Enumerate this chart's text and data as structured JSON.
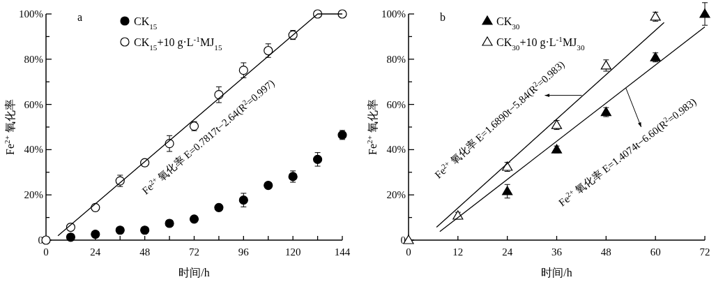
{
  "chart_data": [
    {
      "type": "scatter",
      "title": "a",
      "xlabel": "时间/h",
      "ylabel": "Fe$^{2+}$ 氧化率",
      "xlim": [
        0,
        144
      ],
      "ylim": [
        0,
        100
      ],
      "xticks": [
        0,
        {
          "value": 12,
          "label": null
        },
        24,
        {
          "value": 36,
          "label": null
        },
        48,
        {
          "value": 60,
          "label": null
        },
        72,
        {
          "value": 84,
          "label": null
        },
        96,
        {
          "value": 108,
          "label": null
        },
        120,
        {
          "value": 132,
          "label": null
        },
        144
      ],
      "yticks": [
        {
          "value": 0,
          "label": "0"
        },
        {
          "value": 10,
          "label": null
        },
        {
          "value": 20,
          "label": "20%"
        },
        {
          "value": 30,
          "label": null
        },
        {
          "value": 40,
          "label": "40%"
        },
        {
          "value": 50,
          "label": null
        },
        {
          "value": 60,
          "label": "60%"
        },
        {
          "value": 70,
          "label": null
        },
        {
          "value": 80,
          "label": "80%"
        },
        {
          "value": 90,
          "label": null
        },
        {
          "value": 100,
          "label": "100%"
        }
      ],
      "legend": "top left",
      "grid": false,
      "series": [
        {
          "name": "CK$_{15}$",
          "marker": "circle",
          "color": "#000000",
          "x": [
            12,
            24,
            36,
            48,
            60,
            72,
            84,
            96,
            108,
            120,
            132,
            144
          ],
          "values": [
            1.3,
            2.6,
            4.4,
            4.4,
            7.4,
            9.3,
            14.4,
            17.7,
            24.2,
            28.1,
            35.7,
            46.5
          ],
          "errors": [
            1,
            1,
            1,
            1,
            1,
            1,
            1.5,
            3,
            1,
            2.5,
            3,
            2
          ]
        },
        {
          "name": "CK$_{15}$+10 g·L$^{-1}$MJ$_{15}$",
          "marker": "circle",
          "color": "#ffffff",
          "x": [
            0,
            12,
            24,
            36,
            48,
            60,
            72,
            84,
            96,
            108,
            120,
            132,
            144
          ],
          "values": [
            0,
            5.7,
            14.4,
            26.2,
            34.2,
            42.7,
            50.4,
            64.3,
            75.1,
            83.8,
            90.7,
            100,
            100
          ],
          "errors": [
            null,
            1,
            1.5,
            2.5,
            1.5,
            3.5,
            2,
            3.5,
            3.3,
            3,
            2,
            1,
            1
          ]
        },
        {
          "type": "line",
          "marker": "none",
          "color": "#000000",
          "x": [
            5.8,
            132,
            144
          ],
          "values": [
            1.9,
            100,
            100
          ]
        }
      ],
      "annotations": [
        "Fe$^{2+}$ 氧化率 E=0.7817t−2.64(R$^{2}$=0.997)"
      ]
    },
    {
      "type": "scatter",
      "title": "b",
      "xlabel": "时间/h",
      "ylabel": "Fe$^{2+}$ 氧化率",
      "xlim": [
        0,
        72
      ],
      "ylim": [
        0,
        100
      ],
      "xticks": [
        0,
        12,
        24,
        36,
        48,
        60,
        72
      ],
      "yticks": [
        {
          "value": 0,
          "label": "0"
        },
        {
          "value": 10,
          "label": null
        },
        {
          "value": 20,
          "label": "20%"
        },
        {
          "value": 30,
          "label": null
        },
        {
          "value": 40,
          "label": "40%"
        },
        {
          "value": 50,
          "label": null
        },
        {
          "value": 60,
          "label": "60%"
        },
        {
          "value": 70,
          "label": null
        },
        {
          "value": 80,
          "label": "80%"
        },
        {
          "value": 90,
          "label": null
        },
        {
          "value": 100,
          "label": "100%"
        }
      ],
      "legend": "top left",
      "grid": false,
      "series": [
        {
          "name": "CK$_{30}$",
          "marker": "triangle",
          "color": "#000000",
          "x": [
            24,
            36,
            48,
            60,
            72
          ],
          "values": [
            21.6,
            40.1,
            56.6,
            80.8,
            100
          ],
          "errors": [
            3,
            1.5,
            2,
            2,
            5
          ]
        },
        {
          "name": "CK$_{30}$+10 g·L$^{-1}$MJ$_{30}$",
          "marker": "triangle",
          "color": "#ffffff",
          "x": [
            0,
            12,
            24,
            36,
            48,
            60
          ],
          "values": [
            0,
            10.8,
            32.4,
            50.9,
            77.2,
            98.8
          ],
          "errors": [
            null,
            1.5,
            2,
            2,
            2.5,
            2
          ]
        },
        {
          "type": "line",
          "marker": "none",
          "color": "#000000",
          "x": [
            6.8,
            62.1
          ],
          "values": [
            5.7,
            96.2
          ]
        },
        {
          "type": "line",
          "marker": "none",
          "color": "#000000",
          "x": [
            7.6,
            72
          ],
          "values": [
            3.8,
            94.3
          ]
        }
      ],
      "annotations": [
        {
          "text": "Fe$^{2+}$ 氧化率 E=1.6890t−5.84(R$^{2}$=0.983)",
          "x": 42.1,
          "y": 64
        },
        {
          "text": "Fe$^{2+}$ 氧化率 E=1.4074t−6.60(R$^{2}$=0.983)",
          "x": 52.8,
          "y": 67.3
        }
      ]
    }
  ]
}
